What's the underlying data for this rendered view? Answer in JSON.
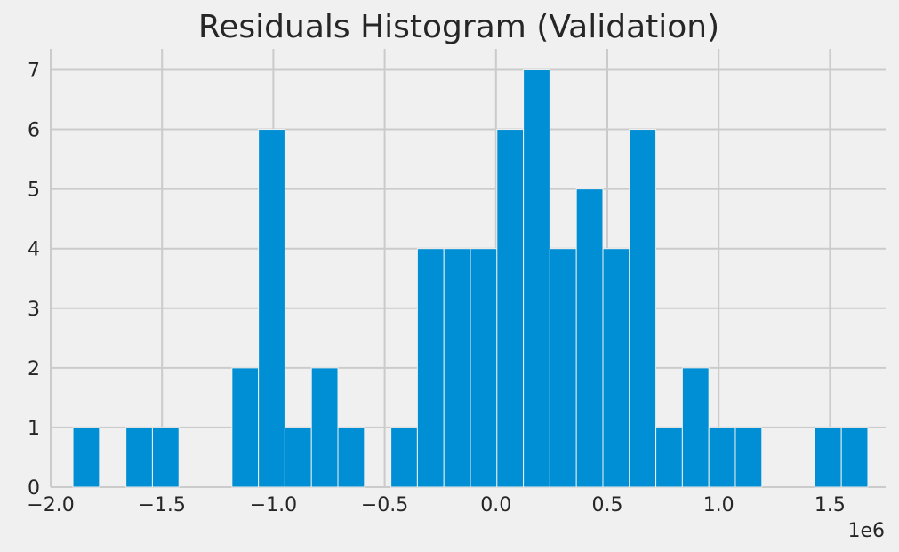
{
  "chart_data": {
    "type": "bar",
    "title": "Residuals Histogram (Validation)",
    "xlabel": "",
    "ylabel": "",
    "x_offset_label": "1e6",
    "xlim": [
      -2.0,
      1.75
    ],
    "ylim": [
      0,
      7.35
    ],
    "x_ticks": [
      -2.0,
      -1.5,
      -1.0,
      -0.5,
      0.0,
      0.5,
      1.0,
      1.5
    ],
    "x_tick_labels": [
      "−2.0",
      "−1.5",
      "−1.0",
      "−0.5",
      "0.0",
      "0.5",
      "1.0",
      "1.5"
    ],
    "y_ticks": [
      0,
      1,
      2,
      3,
      4,
      5,
      6,
      7
    ],
    "y_tick_labels": [
      "0",
      "1",
      "2",
      "3",
      "4",
      "5",
      "6",
      "7"
    ],
    "grid": true,
    "bar_color": "#008fd5",
    "bin_edges": [
      -1.9,
      -1.781,
      -1.662,
      -1.543,
      -1.424,
      -1.305,
      -1.186,
      -1.067,
      -0.948,
      -0.829,
      -0.71,
      -0.591,
      -0.472,
      -0.353,
      -0.234,
      -0.115,
      0.004,
      0.123,
      0.242,
      0.361,
      0.48,
      0.599,
      0.718,
      0.837,
      0.956,
      1.075,
      1.194,
      1.313,
      1.432,
      1.551,
      1.67
    ],
    "counts": [
      1,
      0,
      1,
      1,
      0,
      0,
      2,
      6,
      1,
      2,
      1,
      0,
      1,
      4,
      4,
      4,
      6,
      7,
      4,
      5,
      4,
      6,
      1,
      2,
      1,
      1,
      0,
      0,
      1,
      1
    ]
  }
}
